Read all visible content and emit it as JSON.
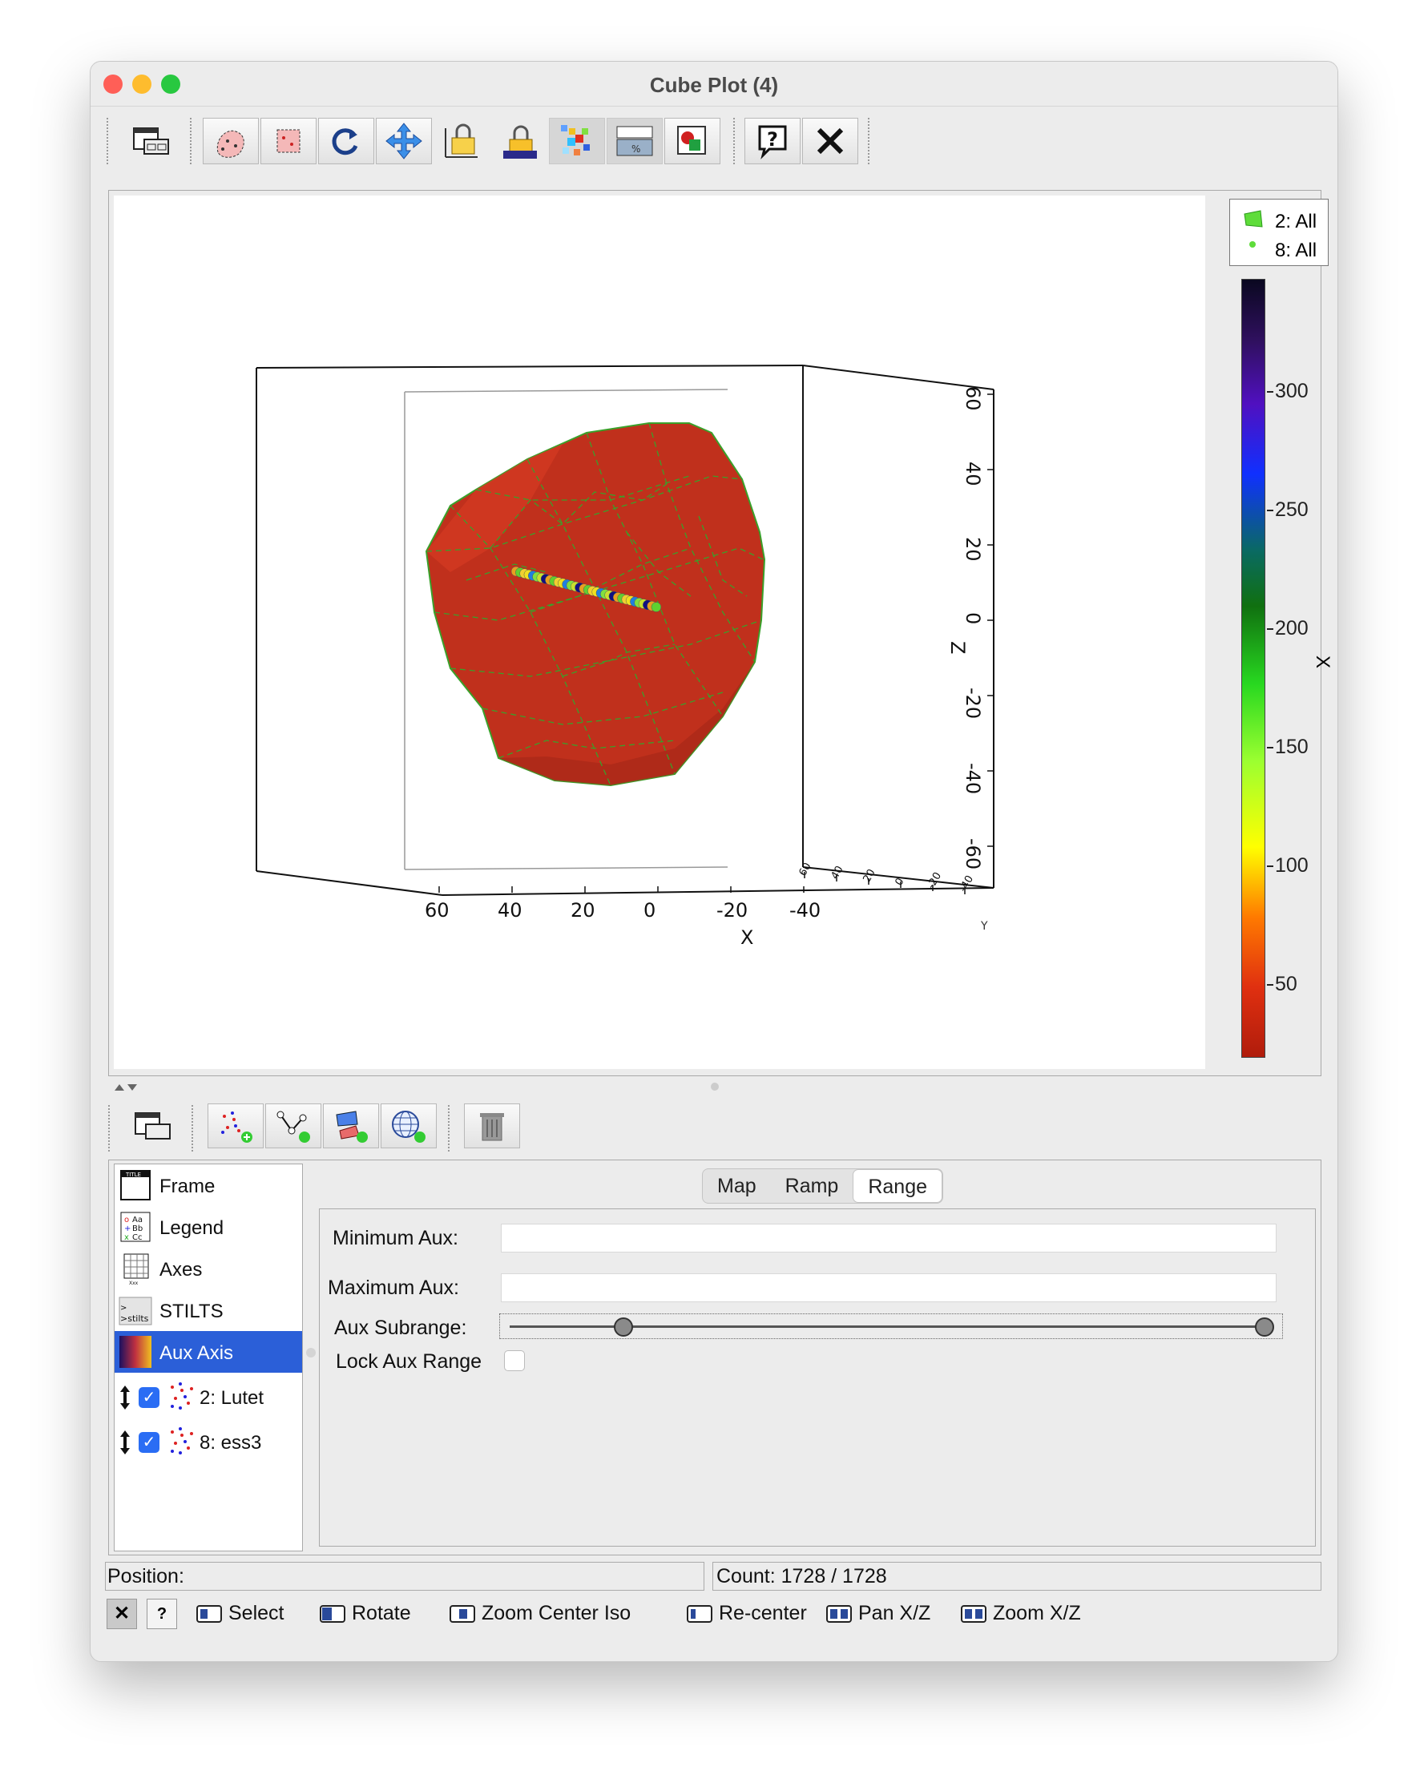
{
  "window": {
    "title": "Cube Plot (4)"
  },
  "legend": {
    "entries": [
      "2: All",
      "8: All"
    ]
  },
  "colorbar": {
    "label": "X",
    "ticks": [
      "300",
      "250",
      "200",
      "150",
      "100",
      "50"
    ],
    "colormap": "red-yellow-green-blue-purple"
  },
  "axes": {
    "x": {
      "label": "X",
      "ticks": [
        "60",
        "40",
        "20",
        "0",
        "-20",
        "-40"
      ]
    },
    "y": {
      "label": "Y",
      "ticks": [
        "60",
        "40",
        "20",
        "0",
        "-20",
        "-40"
      ]
    },
    "z": {
      "label": "Z",
      "ticks": [
        "60",
        "40",
        "20",
        "0",
        "-20",
        "-40",
        "-60"
      ]
    }
  },
  "control_list": {
    "items": [
      {
        "label": "Frame",
        "icon": "frame-icon"
      },
      {
        "label": "Legend",
        "icon": "legend-icon"
      },
      {
        "label": "Axes",
        "icon": "axes-icon"
      },
      {
        "label": "STILTS",
        "icon": "stilts-icon"
      },
      {
        "label": "Aux Axis",
        "icon": "aux-axis-icon",
        "selected": true
      }
    ],
    "layers": [
      {
        "label": "2: Lutet",
        "checked": true
      },
      {
        "label": "8: ess3",
        "checked": true
      }
    ]
  },
  "tabs": {
    "items": [
      "Map",
      "Ramp",
      "Range"
    ],
    "active": "Range"
  },
  "range_form": {
    "min_label": "Minimum Aux:",
    "min_value": "",
    "max_label": "Maximum Aux:",
    "max_value": "",
    "subrange_label": "Aux Subrange:",
    "subrange": [
      0.14,
      1.0
    ],
    "lock_label": "Lock Aux Range",
    "lock_checked": false
  },
  "status": {
    "position_label": "Position:",
    "count_label": "Count: 1728 / 1728"
  },
  "modes": [
    "Select",
    "Rotate",
    "Zoom Center Iso",
    "Re-center",
    "Pan X/Z",
    "Zoom X/Z"
  ],
  "colors": {
    "surface": "#c0301c",
    "mesh": "#3aa02a",
    "selection": "#2b5fd8"
  }
}
